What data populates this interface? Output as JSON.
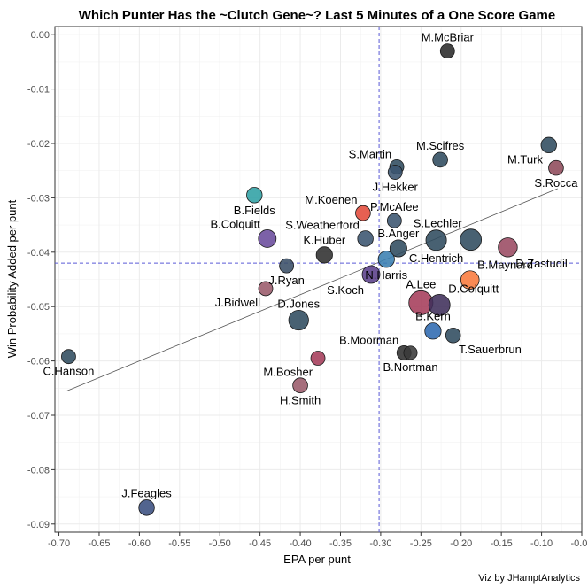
{
  "chart_data": {
    "type": "scatter",
    "title": "Which Punter Has the ~Clutch Gene~? Last 5 Minutes of a One Score Game",
    "xlabel": "EPA per punt",
    "ylabel": "Win Probability Added per punt",
    "caption": "Viz by JHamptAnalytics",
    "xlim": [
      -0.705,
      -0.05
    ],
    "ylim": [
      -0.0915,
      0.0015
    ],
    "x_ticks": [
      -0.7,
      -0.65,
      -0.6,
      -0.55,
      -0.5,
      -0.45,
      -0.4,
      -0.35,
      -0.3,
      -0.25,
      -0.2,
      -0.15,
      -0.1,
      -0.05
    ],
    "x_tick_labels": [
      "-0.70",
      "-0.65",
      "-0.60",
      "-0.55",
      "-0.50",
      "-0.45",
      "-0.40",
      "-0.35",
      "-0.30",
      "-0.25",
      "-0.20",
      "-0.15",
      "-0.10",
      "-0.05"
    ],
    "y_ticks": [
      0.0,
      -0.01,
      -0.02,
      -0.03,
      -0.04,
      -0.05,
      -0.06,
      -0.07,
      -0.08,
      -0.09
    ],
    "y_tick_labels": [
      "0.00",
      "-0.01",
      "-0.02",
      "-0.03",
      "-0.04",
      "-0.05",
      "-0.06",
      "-0.07",
      "-0.08",
      "-0.09"
    ],
    "grid": true,
    "mean_lines": {
      "x": -0.302,
      "y": -0.042,
      "style": "dashed",
      "color": "#5a5ad6"
    },
    "trend_line": {
      "x": [
        -0.69,
        -0.08
      ],
      "y": [
        -0.0655,
        -0.0283
      ],
      "color": "#555555"
    },
    "points": [
      {
        "name": "M.McBriar",
        "x": -0.217,
        "y": -0.003,
        "size": 0.5,
        "color": "#2a2a2a",
        "label_pos": "above"
      },
      {
        "name": "M.Turk",
        "x": -0.091,
        "y": -0.0203,
        "size": 0.6,
        "color": "#2f4b5e",
        "label_pos": "below-left"
      },
      {
        "name": "S.Rocca",
        "x": -0.082,
        "y": -0.0245,
        "size": 0.55,
        "color": "#8e4a5a",
        "label_pos": "below"
      },
      {
        "name": "M.Scifres",
        "x": -0.226,
        "y": -0.023,
        "size": 0.55,
        "color": "#2f4b5e",
        "label_pos": "above"
      },
      {
        "name": "S.Martin",
        "x": -0.28,
        "y": -0.0243,
        "size": 0.5,
        "color": "#2f4b5e",
        "label_pos": "above-left"
      },
      {
        "name": "J.Hekker",
        "x": -0.282,
        "y": -0.0253,
        "size": 0.5,
        "color": "#3a5470",
        "label_pos": "below"
      },
      {
        "name": "B.Fields",
        "x": -0.457,
        "y": -0.0295,
        "size": 0.6,
        "color": "#2fa0a4",
        "label_pos": "below"
      },
      {
        "name": "M.Koenen",
        "x": -0.322,
        "y": -0.0328,
        "size": 0.55,
        "color": "#e24a3a",
        "label_pos": "above-left"
      },
      {
        "name": "P.McAfee",
        "x": -0.283,
        "y": -0.0342,
        "size": 0.5,
        "color": "#3a5470",
        "label_pos": "above"
      },
      {
        "name": "S.Weatherford",
        "x": -0.319,
        "y": -0.0375,
        "size": 0.6,
        "color": "#3a5470",
        "label_pos": "above-left"
      },
      {
        "name": "B.Colquitt",
        "x": -0.441,
        "y": -0.0375,
        "size": 0.75,
        "color": "#6a4b9c",
        "label_pos": "above-left"
      },
      {
        "name": "B.Anger",
        "x": -0.278,
        "y": -0.0393,
        "size": 0.7,
        "color": "#2f4b5e",
        "label_pos": "above"
      },
      {
        "name": "S.Lechler",
        "x": -0.188,
        "y": -0.0377,
        "size": 1.0,
        "color": "#2f4b5e",
        "label_pos": "above-left"
      },
      {
        "name": "C.Hentrich",
        "x": -0.231,
        "y": -0.0378,
        "size": 0.95,
        "color": "#2f4b5e",
        "label_pos": "below"
      },
      {
        "name": "D.Zastudil",
        "x": -0.142,
        "y": -0.0391,
        "size": 0.85,
        "color": "#9a4a62",
        "label_pos": "below-right"
      },
      {
        "name": "K.Huber",
        "x": -0.37,
        "y": -0.0405,
        "size": 0.65,
        "color": "#2f2f2f",
        "label_pos": "above"
      },
      {
        "name": "N.Harris",
        "x": -0.293,
        "y": -0.0413,
        "size": 0.65,
        "color": "#3a7fb0",
        "label_pos": "below"
      },
      {
        "name": "J.Ryan",
        "x": -0.417,
        "y": -0.0425,
        "size": 0.5,
        "color": "#3a4f66",
        "label_pos": "below"
      },
      {
        "name": "S.Koch",
        "x": -0.312,
        "y": -0.0441,
        "size": 0.75,
        "color": "#5a3f8a",
        "label_pos": "below-left"
      },
      {
        "name": "B.Maynard",
        "x": -0.189,
        "y": -0.0451,
        "size": 0.8,
        "color": "#f97a3c",
        "label_pos": "above-right"
      },
      {
        "name": "J.Bidwell",
        "x": -0.443,
        "y": -0.0467,
        "size": 0.5,
        "color": "#9a5a6a",
        "label_pos": "below-left"
      },
      {
        "name": "A.Lee",
        "x": -0.25,
        "y": -0.0493,
        "size": 1.2,
        "color": "#a53c5a",
        "label_pos": "above"
      },
      {
        "name": "D.Colquitt",
        "x": -0.227,
        "y": -0.0497,
        "size": 1.0,
        "color": "#3f2f5a",
        "label_pos": "above-right"
      },
      {
        "name": "D.Jones",
        "x": -0.402,
        "y": -0.0525,
        "size": 0.9,
        "color": "#2f4b5e",
        "label_pos": "above"
      },
      {
        "name": "B.Kern",
        "x": -0.235,
        "y": -0.0545,
        "size": 0.65,
        "color": "#2f6ab0",
        "label_pos": "above"
      },
      {
        "name": "T.Sauerbrun",
        "x": -0.21,
        "y": -0.0553,
        "size": 0.55,
        "color": "#2f4b5e",
        "label_pos": "below-right"
      },
      {
        "name": "B.Moorman",
        "x": -0.271,
        "y": -0.0585,
        "size": 0.5,
        "color": "#2f2f2f",
        "label_pos": "above-left"
      },
      {
        "name": "B.Nortman",
        "x": -0.263,
        "y": -0.0585,
        "size": 0.45,
        "color": "#3a3a3a",
        "label_pos": "below"
      },
      {
        "name": "C.Hanson",
        "x": -0.688,
        "y": -0.0592,
        "size": 0.5,
        "color": "#2f4b5e",
        "label_pos": "below"
      },
      {
        "name": "M.Bosher",
        "x": -0.378,
        "y": -0.0595,
        "size": 0.5,
        "color": "#a53c5a",
        "label_pos": "below-left"
      },
      {
        "name": "H.Smith",
        "x": -0.4,
        "y": -0.0645,
        "size": 0.55,
        "color": "#9a5a6a",
        "label_pos": "below"
      },
      {
        "name": "J.Feagles",
        "x": -0.591,
        "y": -0.087,
        "size": 0.6,
        "color": "#3a4f80",
        "label_pos": "above"
      }
    ]
  }
}
